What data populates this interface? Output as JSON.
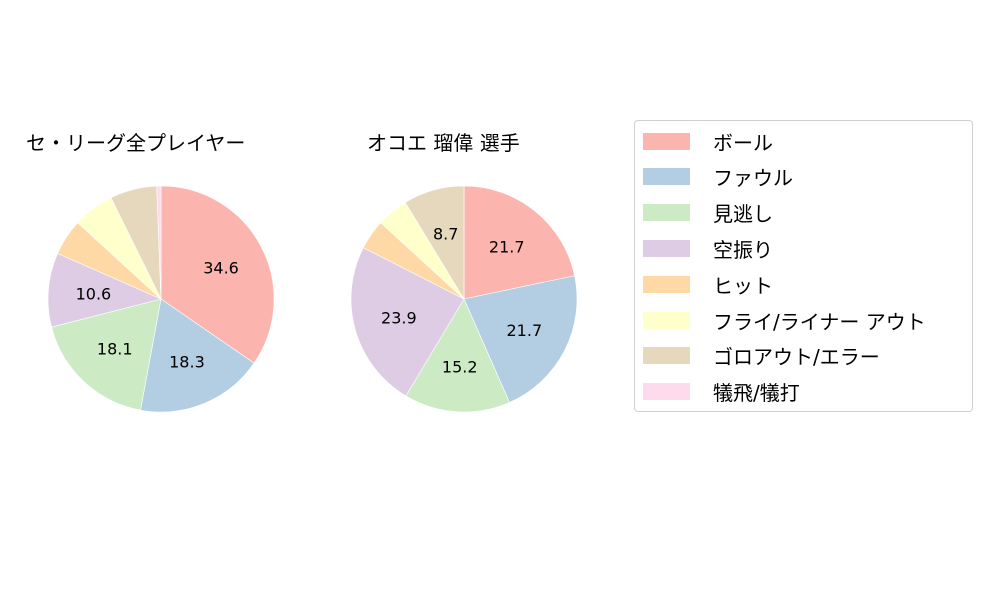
{
  "chart_data": [
    {
      "type": "pie",
      "title": "セ・リーグ全プレイヤー",
      "categories": [
        "ボール",
        "ファウル",
        "見逃し",
        "空振り",
        "ヒット",
        "フライ/ライナー アウト",
        "ゴロアウト/エラー",
        "犠飛/犠打"
      ],
      "values": [
        34.6,
        18.3,
        18.1,
        10.6,
        5.2,
        5.9,
        6.7,
        0.6
      ],
      "labels_shown": [
        "34.6",
        "18.3",
        "18.1",
        "10.6",
        "",
        "",
        "",
        ""
      ],
      "start_angle": 90,
      "direction": "clockwise"
    },
    {
      "type": "pie",
      "title": "オコエ 瑠偉  選手",
      "categories": [
        "ボール",
        "ファウル",
        "見逃し",
        "空振り",
        "ヒット",
        "フライ/ライナー アウト",
        "ゴロアウト/エラー",
        "犠飛/犠打"
      ],
      "values": [
        21.7,
        21.7,
        15.2,
        23.9,
        4.3,
        4.5,
        8.7,
        0.0
      ],
      "labels_shown": [
        "21.7",
        "21.7",
        "15.2",
        "23.9",
        "",
        "",
        "8.7",
        ""
      ],
      "start_angle": 90,
      "direction": "clockwise"
    }
  ],
  "titles": {
    "left": "セ・リーグ全プレイヤー",
    "right": "オコエ 瑠偉  選手"
  },
  "legend": {
    "position": "right",
    "items": [
      {
        "label": "ボール",
        "color": "#fbb4ae"
      },
      {
        "label": "ファウル",
        "color": "#b3cde3"
      },
      {
        "label": "見逃し",
        "color": "#ccebc5"
      },
      {
        "label": "空振り",
        "color": "#decbe4"
      },
      {
        "label": "ヒット",
        "color": "#fed9a6"
      },
      {
        "label": "フライ/ライナー アウト",
        "color": "#ffffcc"
      },
      {
        "label": "ゴロアウト/エラー",
        "color": "#e5d8bd"
      },
      {
        "label": "犠飛/犠打",
        "color": "#fddaec"
      }
    ]
  }
}
